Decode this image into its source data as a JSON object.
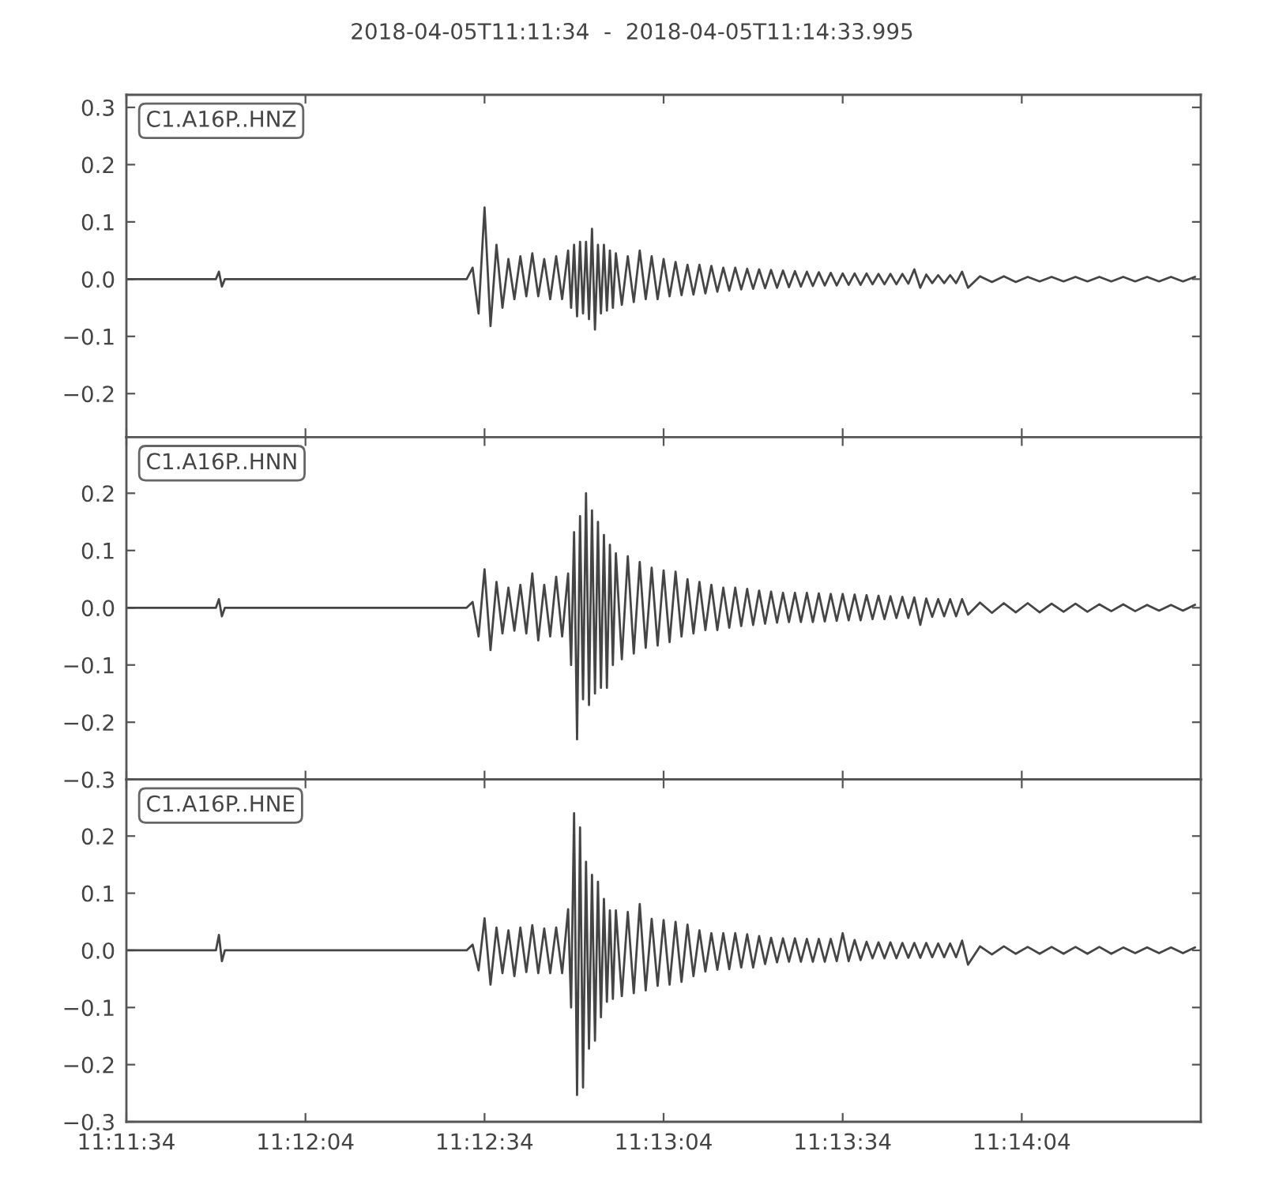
{
  "chart_data": [
    {
      "type": "line",
      "title": "2018-04-05T11:11:34  -  2018-04-05T11:14:33.995",
      "x": [
        "2018-04-05T11:11:34",
        "2018-04-05T11:11:44",
        "2018-04-05T11:11:49",
        "2018-04-05T11:11:49.5",
        "2018-04-05T11:11:50",
        "2018-04-05T11:11:50.5",
        "2018-04-05T11:12:04",
        "2018-04-05T11:12:19",
        "2018-04-05T11:12:31",
        "2018-04-05T11:12:32",
        "2018-04-05T11:12:33",
        "2018-04-05T11:12:34",
        "2018-04-05T11:12:35",
        "2018-04-05T11:12:36",
        "2018-04-05T11:12:37",
        "2018-04-05T11:12:38",
        "2018-04-05T11:12:39",
        "2018-04-05T11:12:40",
        "2018-04-05T11:12:41",
        "2018-04-05T11:12:42",
        "2018-04-05T11:12:43",
        "2018-04-05T11:12:44",
        "2018-04-05T11:12:45",
        "2018-04-05T11:12:46",
        "2018-04-05T11:12:47",
        "2018-04-05T11:12:48",
        "2018-04-05T11:12:48.5",
        "2018-04-05T11:12:49",
        "2018-04-05T11:12:49.5",
        "2018-04-05T11:12:50",
        "2018-04-05T11:12:50.5",
        "2018-04-05T11:12:51",
        "2018-04-05T11:12:51.5",
        "2018-04-05T11:12:52",
        "2018-04-05T11:12:52.5",
        "2018-04-05T11:12:53",
        "2018-04-05T11:12:53.5",
        "2018-04-05T11:12:54",
        "2018-04-05T11:12:54.5",
        "2018-04-05T11:12:55",
        "2018-04-05T11:12:55.5",
        "2018-04-05T11:12:56",
        "2018-04-05T11:12:57",
        "2018-04-05T11:12:58",
        "2018-04-05T11:12:59",
        "2018-04-05T11:13:00",
        "2018-04-05T11:13:01",
        "2018-04-05T11:13:02",
        "2018-04-05T11:13:03",
        "2018-04-05T11:13:04",
        "2018-04-05T11:13:05",
        "2018-04-05T11:13:06",
        "2018-04-05T11:13:07",
        "2018-04-05T11:13:08",
        "2018-04-05T11:13:09",
        "2018-04-05T11:13:10",
        "2018-04-05T11:13:11",
        "2018-04-05T11:13:12",
        "2018-04-05T11:13:13",
        "2018-04-05T11:13:14",
        "2018-04-05T11:13:15",
        "2018-04-05T11:13:16",
        "2018-04-05T11:13:17",
        "2018-04-05T11:13:18",
        "2018-04-05T11:13:19",
        "2018-04-05T11:13:20",
        "2018-04-05T11:13:21",
        "2018-04-05T11:13:22",
        "2018-04-05T11:13:23",
        "2018-04-05T11:13:24",
        "2018-04-05T11:13:25",
        "2018-04-05T11:13:26",
        "2018-04-05T11:13:27",
        "2018-04-05T11:13:28",
        "2018-04-05T11:13:29",
        "2018-04-05T11:13:30",
        "2018-04-05T11:13:31",
        "2018-04-05T11:13:32",
        "2018-04-05T11:13:33",
        "2018-04-05T11:13:34",
        "2018-04-05T11:13:35",
        "2018-04-05T11:13:36",
        "2018-04-05T11:13:37",
        "2018-04-05T11:13:38",
        "2018-04-05T11:13:39",
        "2018-04-05T11:13:40",
        "2018-04-05T11:13:41",
        "2018-04-05T11:13:42",
        "2018-04-05T11:13:43",
        "2018-04-05T11:13:44",
        "2018-04-05T11:13:45",
        "2018-04-05T11:13:46",
        "2018-04-05T11:13:47",
        "2018-04-05T11:13:48",
        "2018-04-05T11:13:49",
        "2018-04-05T11:13:50",
        "2018-04-05T11:13:51",
        "2018-04-05T11:13:52",
        "2018-04-05T11:13:53",
        "2018-04-05T11:13:54",
        "2018-04-05T11:13:55",
        "2018-04-05T11:13:57",
        "2018-04-05T11:13:59",
        "2018-04-05T11:14:01",
        "2018-04-05T11:14:03",
        "2018-04-05T11:14:05",
        "2018-04-05T11:14:07",
        "2018-04-05T11:14:09",
        "2018-04-05T11:14:11",
        "2018-04-05T11:14:13",
        "2018-04-05T11:14:15",
        "2018-04-05T11:14:17",
        "2018-04-05T11:14:19",
        "2018-04-05T11:14:21",
        "2018-04-05T11:14:23",
        "2018-04-05T11:14:25",
        "2018-04-05T11:14:27",
        "2018-04-05T11:14:29",
        "2018-04-05T11:14:31",
        "2018-04-05T11:14:33"
      ],
      "series": [
        {
          "name": "C1.A16P..HNZ",
          "color": "#454545",
          "values": [
            0,
            0,
            0,
            0.013,
            -0.013,
            0,
            0,
            0,
            0,
            0.02,
            -0.06,
            0.125,
            -0.082,
            0.06,
            -0.05,
            0.035,
            -0.035,
            0.04,
            -0.03,
            0.045,
            -0.03,
            0.035,
            -0.035,
            0.04,
            -0.035,
            0.05,
            -0.05,
            0.06,
            -0.065,
            0.065,
            -0.06,
            0.065,
            -0.07,
            0.088,
            -0.088,
            0.06,
            -0.06,
            0.06,
            -0.055,
            0.05,
            -0.05,
            0.045,
            -0.045,
            0.04,
            -0.04,
            0.05,
            -0.035,
            0.04,
            -0.035,
            0.035,
            -0.03,
            0.03,
            -0.028,
            0.025,
            -0.027,
            0.025,
            -0.025,
            0.023,
            -0.022,
            0.02,
            -0.02,
            0.02,
            -0.018,
            0.018,
            -0.017,
            0.017,
            -0.016,
            0.016,
            -0.015,
            0.015,
            -0.014,
            0.014,
            -0.013,
            0.013,
            -0.012,
            0.012,
            -0.011,
            0.011,
            -0.011,
            0.01,
            -0.01,
            0.01,
            -0.01,
            0.01,
            -0.009,
            0.009,
            -0.009,
            0.009,
            -0.009,
            0.009,
            -0.008,
            0.017,
            -0.015,
            0.008,
            -0.007,
            0.007,
            -0.007,
            0.007,
            -0.007,
            0.013,
            -0.015,
            0.005,
            -0.005,
            0.005,
            -0.005,
            0.004,
            -0.004,
            0.004,
            -0.004,
            0.004,
            -0.004,
            0.004,
            -0.004,
            0.004,
            -0.004,
            0.004,
            -0.004,
            0.004,
            -0.004,
            0.004
          ]
        }
      ],
      "xlim": [
        "2018-04-05T11:11:34",
        "2018-04-05T11:14:33.995"
      ],
      "xticks": [
        {
          "value": "2018-04-05T11:11:34",
          "label": null
        },
        {
          "value": "2018-04-05T11:12:04",
          "label": null
        },
        {
          "value": "2018-04-05T11:12:34",
          "label": null
        },
        {
          "value": "2018-04-05T11:13:04",
          "label": null
        },
        {
          "value": "2018-04-05T11:13:34",
          "label": null
        },
        {
          "value": "2018-04-05T11:14:04",
          "label": null
        }
      ],
      "ylim": [
        -0.276,
        0.322
      ],
      "yticks": [
        0.3,
        0.2,
        0.1,
        {
          "value": 0,
          "label": "0.0"
        },
        {
          "value": -0.1,
          "label": "−0.1"
        },
        {
          "value": -0.2,
          "label": "−0.2"
        }
      ],
      "tick_labels": "y"
    },
    {
      "type": "line",
      "x": [
        "2018-04-05T11:11:34",
        "2018-04-05T11:11:44",
        "2018-04-05T11:11:49",
        "2018-04-05T11:11:49.5",
        "2018-04-05T11:11:50",
        "2018-04-05T11:11:50.5",
        "2018-04-05T11:12:04",
        "2018-04-05T11:12:19",
        "2018-04-05T11:12:31",
        "2018-04-05T11:12:32",
        "2018-04-05T11:12:33",
        "2018-04-05T11:12:34",
        "2018-04-05T11:12:35",
        "2018-04-05T11:12:36",
        "2018-04-05T11:12:37",
        "2018-04-05T11:12:38",
        "2018-04-05T11:12:39",
        "2018-04-05T11:12:40",
        "2018-04-05T11:12:41",
        "2018-04-05T11:12:42",
        "2018-04-05T11:12:43",
        "2018-04-05T11:12:44",
        "2018-04-05T11:12:45",
        "2018-04-05T11:12:46",
        "2018-04-05T11:12:47",
        "2018-04-05T11:12:48",
        "2018-04-05T11:12:48.5",
        "2018-04-05T11:12:49",
        "2018-04-05T11:12:49.5",
        "2018-04-05T11:12:50",
        "2018-04-05T11:12:50.5",
        "2018-04-05T11:12:51",
        "2018-04-05T11:12:51.5",
        "2018-04-05T11:12:52",
        "2018-04-05T11:12:52.5",
        "2018-04-05T11:12:53",
        "2018-04-05T11:12:53.5",
        "2018-04-05T11:12:54",
        "2018-04-05T11:12:54.5",
        "2018-04-05T11:12:55",
        "2018-04-05T11:12:55.5",
        "2018-04-05T11:12:56",
        "2018-04-05T11:12:57",
        "2018-04-05T11:12:58",
        "2018-04-05T11:12:59",
        "2018-04-05T11:13:00",
        "2018-04-05T11:13:01",
        "2018-04-05T11:13:02",
        "2018-04-05T11:13:03",
        "2018-04-05T11:13:04",
        "2018-04-05T11:13:05",
        "2018-04-05T11:13:06",
        "2018-04-05T11:13:07",
        "2018-04-05T11:13:08",
        "2018-04-05T11:13:09",
        "2018-04-05T11:13:10",
        "2018-04-05T11:13:11",
        "2018-04-05T11:13:12",
        "2018-04-05T11:13:13",
        "2018-04-05T11:13:14",
        "2018-04-05T11:13:15",
        "2018-04-05T11:13:16",
        "2018-04-05T11:13:17",
        "2018-04-05T11:13:18",
        "2018-04-05T11:13:19",
        "2018-04-05T11:13:20",
        "2018-04-05T11:13:21",
        "2018-04-05T11:13:22",
        "2018-04-05T11:13:23",
        "2018-04-05T11:13:24",
        "2018-04-05T11:13:25",
        "2018-04-05T11:13:26",
        "2018-04-05T11:13:27",
        "2018-04-05T11:13:28",
        "2018-04-05T11:13:29",
        "2018-04-05T11:13:30",
        "2018-04-05T11:13:31",
        "2018-04-05T11:13:32",
        "2018-04-05T11:13:33",
        "2018-04-05T11:13:34",
        "2018-04-05T11:13:35",
        "2018-04-05T11:13:36",
        "2018-04-05T11:13:37",
        "2018-04-05T11:13:38",
        "2018-04-05T11:13:39",
        "2018-04-05T11:13:40",
        "2018-04-05T11:13:41",
        "2018-04-05T11:13:42",
        "2018-04-05T11:13:43",
        "2018-04-05T11:13:44",
        "2018-04-05T11:13:45",
        "2018-04-05T11:13:46",
        "2018-04-05T11:13:47",
        "2018-04-05T11:13:48",
        "2018-04-05T11:13:49",
        "2018-04-05T11:13:50",
        "2018-04-05T11:13:51",
        "2018-04-05T11:13:52",
        "2018-04-05T11:13:53",
        "2018-04-05T11:13:54",
        "2018-04-05T11:13:55",
        "2018-04-05T11:13:57",
        "2018-04-05T11:13:59",
        "2018-04-05T11:14:01",
        "2018-04-05T11:14:03",
        "2018-04-05T11:14:05",
        "2018-04-05T11:14:07",
        "2018-04-05T11:14:09",
        "2018-04-05T11:14:11",
        "2018-04-05T11:14:13",
        "2018-04-05T11:14:15",
        "2018-04-05T11:14:17",
        "2018-04-05T11:14:19",
        "2018-04-05T11:14:21",
        "2018-04-05T11:14:23",
        "2018-04-05T11:14:25",
        "2018-04-05T11:14:27",
        "2018-04-05T11:14:29",
        "2018-04-05T11:14:31",
        "2018-04-05T11:14:33"
      ],
      "series": [
        {
          "name": "C1.A16P..HNN",
          "color": "#454545",
          "values": [
            0,
            0,
            0,
            0.015,
            -0.015,
            0,
            0,
            0,
            0,
            0.01,
            -0.05,
            0.067,
            -0.074,
            0.045,
            -0.045,
            0.035,
            -0.04,
            0.04,
            -0.045,
            0.06,
            -0.057,
            0.04,
            -0.05,
            0.054,
            -0.05,
            0.06,
            -0.1,
            0.132,
            -0.23,
            0.16,
            -0.16,
            0.2,
            -0.17,
            0.17,
            -0.15,
            0.15,
            -0.14,
            0.127,
            -0.14,
            0.11,
            -0.1,
            0.095,
            -0.09,
            0.09,
            -0.08,
            0.08,
            -0.07,
            0.07,
            -0.066,
            0.065,
            -0.06,
            0.063,
            -0.05,
            0.05,
            -0.045,
            0.045,
            -0.039,
            0.04,
            -0.039,
            0.035,
            -0.035,
            0.035,
            -0.032,
            0.033,
            -0.03,
            0.03,
            -0.028,
            0.028,
            -0.026,
            0.026,
            -0.025,
            0.026,
            -0.025,
            0.026,
            -0.025,
            0.025,
            -0.024,
            0.024,
            -0.023,
            0.024,
            -0.022,
            0.023,
            -0.022,
            0.022,
            -0.02,
            0.021,
            -0.02,
            0.02,
            -0.018,
            0.019,
            -0.018,
            0.018,
            -0.03,
            0.016,
            -0.016,
            0.015,
            -0.015,
            0.015,
            -0.015,
            0.015,
            -0.012,
            0.009,
            -0.009,
            0.008,
            -0.008,
            0.008,
            -0.008,
            0.007,
            -0.007,
            0.007,
            -0.007,
            0.006,
            -0.006,
            0.006,
            -0.006,
            0.005,
            -0.005,
            0.005,
            -0.005,
            0.005
          ]
        }
      ],
      "xlim": [
        "2018-04-05T11:11:34",
        "2018-04-05T11:14:33.995"
      ],
      "xticks": [
        {
          "value": "2018-04-05T11:11:34",
          "label": null
        },
        {
          "value": "2018-04-05T11:12:04",
          "label": null
        },
        {
          "value": "2018-04-05T11:12:34",
          "label": null
        },
        {
          "value": "2018-04-05T11:13:04",
          "label": null
        },
        {
          "value": "2018-04-05T11:13:34",
          "label": null
        },
        {
          "value": "2018-04-05T11:14:04",
          "label": null
        }
      ],
      "ylim": [
        -0.3,
        0.298
      ],
      "yticks": [
        0.2,
        0.1,
        {
          "value": 0,
          "label": "0.0"
        },
        {
          "value": -0.1,
          "label": "−0.1"
        },
        {
          "value": -0.2,
          "label": "−0.2"
        },
        {
          "value": -0.3,
          "label": "−0.3"
        }
      ],
      "tick_labels": "y"
    },
    {
      "type": "line",
      "x": [
        "2018-04-05T11:11:34",
        "2018-04-05T11:11:44",
        "2018-04-05T11:11:49",
        "2018-04-05T11:11:49.5",
        "2018-04-05T11:11:50",
        "2018-04-05T11:11:50.5",
        "2018-04-05T11:12:04",
        "2018-04-05T11:12:19",
        "2018-04-05T11:12:31",
        "2018-04-05T11:12:32",
        "2018-04-05T11:12:33",
        "2018-04-05T11:12:34",
        "2018-04-05T11:12:35",
        "2018-04-05T11:12:36",
        "2018-04-05T11:12:37",
        "2018-04-05T11:12:38",
        "2018-04-05T11:12:39",
        "2018-04-05T11:12:40",
        "2018-04-05T11:12:41",
        "2018-04-05T11:12:42",
        "2018-04-05T11:12:43",
        "2018-04-05T11:12:44",
        "2018-04-05T11:12:45",
        "2018-04-05T11:12:46",
        "2018-04-05T11:12:47",
        "2018-04-05T11:12:48",
        "2018-04-05T11:12:48.5",
        "2018-04-05T11:12:49",
        "2018-04-05T11:12:49.5",
        "2018-04-05T11:12:50",
        "2018-04-05T11:12:50.5",
        "2018-04-05T11:12:51",
        "2018-04-05T11:12:51.5",
        "2018-04-05T11:12:52",
        "2018-04-05T11:12:52.5",
        "2018-04-05T11:12:53",
        "2018-04-05T11:12:53.5",
        "2018-04-05T11:12:54",
        "2018-04-05T11:12:54.5",
        "2018-04-05T11:12:55",
        "2018-04-05T11:12:55.5",
        "2018-04-05T11:12:56",
        "2018-04-05T11:12:57",
        "2018-04-05T11:12:58",
        "2018-04-05T11:12:59",
        "2018-04-05T11:13:00",
        "2018-04-05T11:13:01",
        "2018-04-05T11:13:02",
        "2018-04-05T11:13:03",
        "2018-04-05T11:13:04",
        "2018-04-05T11:13:05",
        "2018-04-05T11:13:06",
        "2018-04-05T11:13:07",
        "2018-04-05T11:13:08",
        "2018-04-05T11:13:09",
        "2018-04-05T11:13:10",
        "2018-04-05T11:13:11",
        "2018-04-05T11:13:12",
        "2018-04-05T11:13:13",
        "2018-04-05T11:13:14",
        "2018-04-05T11:13:15",
        "2018-04-05T11:13:16",
        "2018-04-05T11:13:17",
        "2018-04-05T11:13:18",
        "2018-04-05T11:13:19",
        "2018-04-05T11:13:20",
        "2018-04-05T11:13:21",
        "2018-04-05T11:13:22",
        "2018-04-05T11:13:23",
        "2018-04-05T11:13:24",
        "2018-04-05T11:13:25",
        "2018-04-05T11:13:26",
        "2018-04-05T11:13:27",
        "2018-04-05T11:13:28",
        "2018-04-05T11:13:29",
        "2018-04-05T11:13:30",
        "2018-04-05T11:13:31",
        "2018-04-05T11:13:32",
        "2018-04-05T11:13:33",
        "2018-04-05T11:13:34",
        "2018-04-05T11:13:35",
        "2018-04-05T11:13:36",
        "2018-04-05T11:13:37",
        "2018-04-05T11:13:38",
        "2018-04-05T11:13:39",
        "2018-04-05T11:13:40",
        "2018-04-05T11:13:41",
        "2018-04-05T11:13:42",
        "2018-04-05T11:13:43",
        "2018-04-05T11:13:44",
        "2018-04-05T11:13:45",
        "2018-04-05T11:13:46",
        "2018-04-05T11:13:47",
        "2018-04-05T11:13:48",
        "2018-04-05T11:13:49",
        "2018-04-05T11:13:50",
        "2018-04-05T11:13:51",
        "2018-04-05T11:13:52",
        "2018-04-05T11:13:53",
        "2018-04-05T11:13:54",
        "2018-04-05T11:13:55",
        "2018-04-05T11:13:57",
        "2018-04-05T11:13:59",
        "2018-04-05T11:14:01",
        "2018-04-05T11:14:03",
        "2018-04-05T11:14:05",
        "2018-04-05T11:14:07",
        "2018-04-05T11:14:09",
        "2018-04-05T11:14:11",
        "2018-04-05T11:14:13",
        "2018-04-05T11:14:15",
        "2018-04-05T11:14:17",
        "2018-04-05T11:14:19",
        "2018-04-05T11:14:21",
        "2018-04-05T11:14:23",
        "2018-04-05T11:14:25",
        "2018-04-05T11:14:27",
        "2018-04-05T11:14:29",
        "2018-04-05T11:14:31",
        "2018-04-05T11:14:33"
      ],
      "series": [
        {
          "name": "C1.A16P..HNE",
          "color": "#454545",
          "values": [
            0,
            0,
            0,
            0.027,
            -0.019,
            0,
            0,
            0,
            0,
            0.01,
            -0.035,
            0.056,
            -0.06,
            0.04,
            -0.04,
            0.035,
            -0.045,
            0.04,
            -0.038,
            0.044,
            -0.04,
            0.038,
            -0.04,
            0.04,
            -0.04,
            0.072,
            -0.1,
            0.24,
            -0.253,
            0.215,
            -0.24,
            0.155,
            -0.172,
            0.132,
            -0.158,
            0.12,
            -0.117,
            0.09,
            -0.09,
            0.07,
            -0.085,
            0.07,
            -0.08,
            0.067,
            -0.075,
            0.081,
            -0.07,
            0.055,
            -0.062,
            0.053,
            -0.06,
            0.05,
            -0.055,
            0.045,
            -0.045,
            0.035,
            -0.037,
            0.03,
            -0.034,
            0.03,
            -0.033,
            0.03,
            -0.03,
            0.028,
            -0.03,
            0.025,
            -0.024,
            0.022,
            -0.021,
            0.021,
            -0.02,
            0.021,
            -0.02,
            0.02,
            -0.02,
            0.02,
            -0.02,
            0.02,
            -0.019,
            0.03,
            -0.019,
            0.018,
            -0.017,
            0.015,
            -0.014,
            0.014,
            -0.014,
            0.014,
            -0.014,
            0.013,
            -0.013,
            0.013,
            -0.013,
            0.013,
            -0.012,
            0.012,
            -0.012,
            0.012,
            -0.012,
            0.017,
            -0.025,
            0.007,
            -0.007,
            0.007,
            -0.006,
            0.006,
            -0.006,
            0.006,
            -0.006,
            0.006,
            -0.006,
            0.006,
            -0.006,
            0.005,
            -0.005,
            0.005,
            -0.005,
            0.005,
            -0.005,
            0.005
          ]
        }
      ],
      "xlim": [
        "2018-04-05T11:11:34",
        "2018-04-05T11:14:33.995"
      ],
      "xticks": [
        {
          "value": "2018-04-05T11:11:34",
          "label": "11:11:34"
        },
        {
          "value": "2018-04-05T11:12:04",
          "label": "11:12:04"
        },
        {
          "value": "2018-04-05T11:12:34",
          "label": "11:12:34"
        },
        {
          "value": "2018-04-05T11:13:04",
          "label": "11:13:04"
        },
        {
          "value": "2018-04-05T11:13:34",
          "label": "11:13:34"
        },
        {
          "value": "2018-04-05T11:14:04",
          "label": "11:14:04"
        }
      ],
      "ylim": [
        -0.3,
        0.299
      ],
      "yticks": [
        0.2,
        0.1,
        {
          "value": 0,
          "label": "0.0"
        },
        {
          "value": -0.1,
          "label": "−0.1"
        },
        {
          "value": -0.2,
          "label": "−0.2"
        },
        {
          "value": -0.3,
          "label": "−0.3"
        }
      ]
    }
  ]
}
